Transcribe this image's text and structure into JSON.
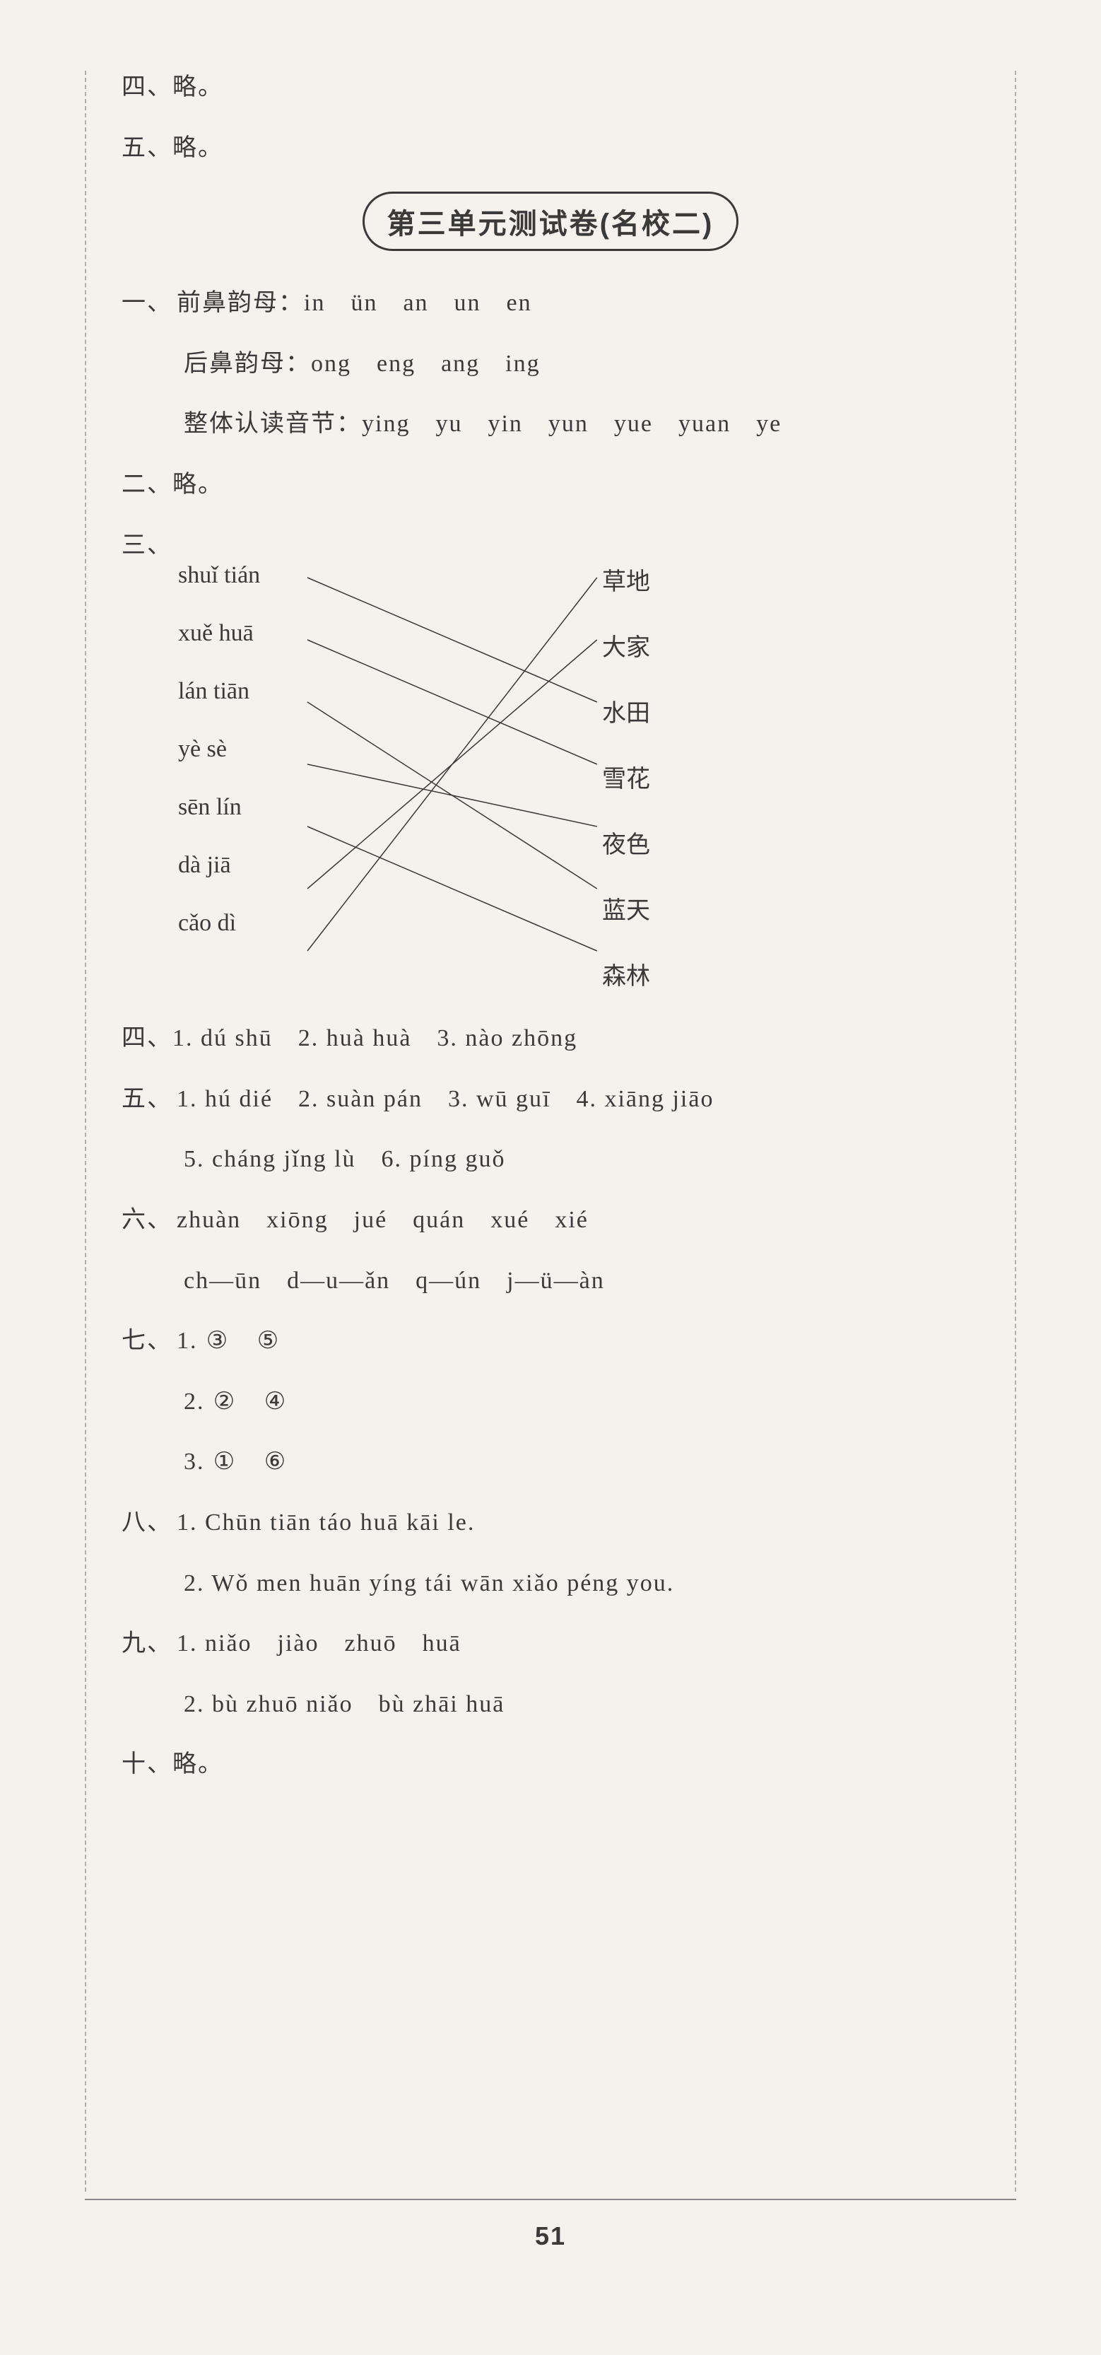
{
  "topLines": [
    "四、略。",
    "五、略。"
  ],
  "title": "第三单元测试卷(名校二)",
  "section1": {
    "label": "一、",
    "rows": [
      "前鼻韵母：in　ün　an　un　en",
      "后鼻韵母：ong　eng　ang　ing",
      "整体认读音节：ying　yu　yin　yun　yue　yuan　ye"
    ]
  },
  "section2": "二、略。",
  "section3": {
    "label": "三、",
    "left": [
      "shuǐ tián",
      "xuě huā",
      "lán tiān",
      "yè sè",
      "sēn lín",
      "dà jiā",
      "cǎo dì"
    ],
    "right": [
      "草地",
      "大家",
      "水田",
      "雪花",
      "夜色",
      "蓝天",
      "森林"
    ],
    "connections": [
      {
        "from": 0,
        "to": 2
      },
      {
        "from": 1,
        "to": 3
      },
      {
        "from": 2,
        "to": 5
      },
      {
        "from": 3,
        "to": 4
      },
      {
        "from": 4,
        "to": 6
      },
      {
        "from": 5,
        "to": 1
      },
      {
        "from": 6,
        "to": 0
      }
    ],
    "leftX": 260,
    "rightX": 665,
    "rowStartY": 22,
    "rowGap": 88,
    "lineColor": "#3a3a3a",
    "lineWidth": 1.5
  },
  "section4": "四、1. dú shū　2. huà huà　3. nào zhōng",
  "section5": {
    "label": "五、",
    "rows": [
      "1. hú dié　2. suàn pán　3. wū guī　4. xiāng jiāo",
      "5. cháng jǐng lù　6. píng guǒ"
    ]
  },
  "section6": {
    "label": "六、",
    "rows": [
      "zhuàn　xiōng　jué　quán　xué　xié",
      "ch—ūn　d—u—ǎn　q—ún　j—ü—àn"
    ]
  },
  "section7": {
    "label": "七、",
    "rows": [
      {
        "num": "1.",
        "items": [
          "③",
          "⑤"
        ]
      },
      {
        "num": "2.",
        "items": [
          "②",
          "④"
        ]
      },
      {
        "num": "3.",
        "items": [
          "①",
          "⑥"
        ]
      }
    ]
  },
  "section8": {
    "label": "八、",
    "rows": [
      "1. Chūn tiān táo huā kāi le.",
      "2. Wǒ men huān yíng tái wān xiǎo péng you."
    ]
  },
  "section9": {
    "label": "九、",
    "rows": [
      "1. niǎo　jiào　zhuō　huā",
      "2. bù zhuō niǎo　bù zhāi huā"
    ]
  },
  "section10": "十、略。",
  "pageNumber": "51"
}
